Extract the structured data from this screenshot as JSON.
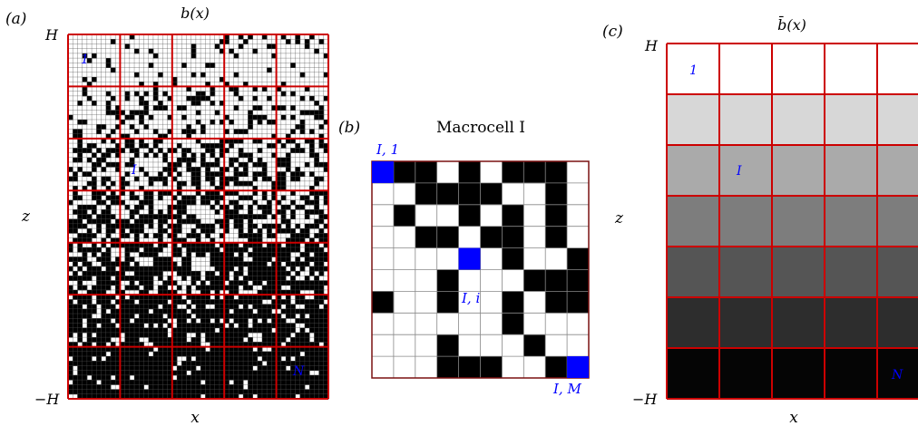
{
  "panel_a": {
    "letter": "(a)",
    "title": "b(x)",
    "h_top": "H",
    "h_bottom": "−H",
    "xlabel": "x",
    "ylabel": "z",
    "label_first": "1",
    "label_macro": "I",
    "label_last": "N",
    "rows": 7,
    "cols": 5,
    "black_fraction_by_row": [
      0.12,
      0.25,
      0.4,
      0.55,
      0.7,
      0.82,
      0.92
    ]
  },
  "panel_b": {
    "letter": "(b)",
    "title": "Macrocell I",
    "label_first": "I, 1",
    "label_mid": "I, i",
    "label_last": "I, M",
    "grid": [
      "1110101110",
      "0011110010",
      "0100101010",
      "0011011010",
      "0000101001",
      "0001000111",
      "1001001011",
      "0000001000",
      "0001000100",
      "0001110011"
    ],
    "highlight_cells": [
      [
        0,
        0
      ],
      [
        4,
        4
      ],
      [
        9,
        9
      ]
    ]
  },
  "panel_c": {
    "letter": "(c)",
    "title": "b̄(x)",
    "h_top": "H",
    "h_bottom": "−H",
    "xlabel": "x",
    "ylabel": "z",
    "label_first": "1",
    "label_macro": "I",
    "label_last": "N",
    "row_gray_levels": [
      255,
      215,
      170,
      125,
      85,
      45,
      5
    ]
  },
  "colors": {
    "grid_red": "#cc0000",
    "border_dark": "#7a1010",
    "highlight_blue": "#0000ff",
    "label_blue": "#0000ff"
  }
}
